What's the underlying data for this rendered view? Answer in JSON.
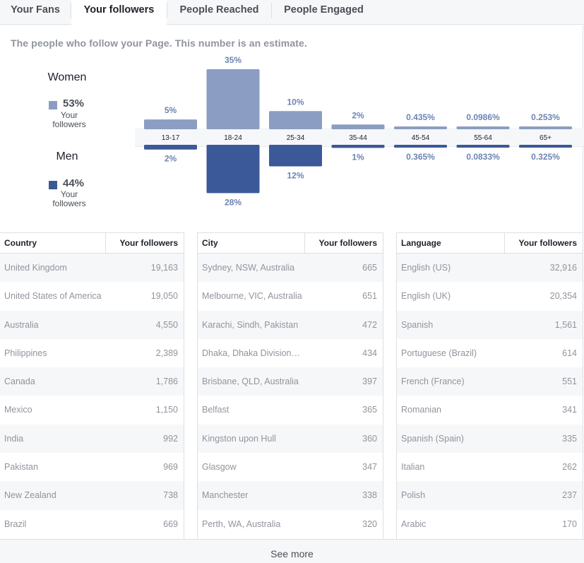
{
  "tabs": [
    "Your Fans",
    "Your followers",
    "People Reached",
    "People Engaged"
  ],
  "active_tab": "Your followers",
  "description": "The people who follow your Page. This number is an estimate.",
  "women": {
    "label": "Women",
    "percent": "53%",
    "sub": "Your followers",
    "color": "#8b9dc3"
  },
  "men": {
    "label": "Men",
    "percent": "44%",
    "sub": "Your followers",
    "color": "#3b5998"
  },
  "chart_data": {
    "type": "bar",
    "categories": [
      "13-17",
      "18-24",
      "25-34",
      "35-44",
      "45-54",
      "55-64",
      "65+"
    ],
    "series": [
      {
        "name": "Women",
        "values": [
          5,
          35,
          10,
          2,
          0.435,
          0.0986,
          0.253
        ],
        "labels": [
          "5%",
          "35%",
          "10%",
          "2%",
          "0.435%",
          "0.0986%",
          "0.253%"
        ]
      },
      {
        "name": "Men",
        "values": [
          2,
          28,
          12,
          1,
          0.365,
          0.0833,
          0.325
        ],
        "labels": [
          "2%",
          "28%",
          "12%",
          "1%",
          "0.365%",
          "0.0833%",
          "0.325%"
        ]
      }
    ]
  },
  "tables": [
    {
      "col1": "Country",
      "col2": "Your followers",
      "rows": [
        [
          "United Kingdom",
          "19,163"
        ],
        [
          "United States of America",
          "19,050"
        ],
        [
          "Australia",
          "4,550"
        ],
        [
          "Philippines",
          "2,389"
        ],
        [
          "Canada",
          "1,786"
        ],
        [
          "Mexico",
          "1,150"
        ],
        [
          "India",
          "992"
        ],
        [
          "Pakistan",
          "969"
        ],
        [
          "New Zealand",
          "738"
        ],
        [
          "Brazil",
          "669"
        ]
      ]
    },
    {
      "col1": "City",
      "col2": "Your followers",
      "rows": [
        [
          "Sydney, NSW, Australia",
          "665"
        ],
        [
          "Melbourne, VIC, Australia",
          "651"
        ],
        [
          "Karachi, Sindh, Pakistan",
          "472"
        ],
        [
          "Dhaka, Dhaka Division…",
          "434"
        ],
        [
          "Brisbane, QLD, Australia",
          "397"
        ],
        [
          "Belfast",
          "365"
        ],
        [
          "Kingston upon Hull",
          "360"
        ],
        [
          "Glasgow",
          "347"
        ],
        [
          "Manchester",
          "338"
        ],
        [
          "Perth, WA, Australia",
          "320"
        ]
      ]
    },
    {
      "col1": "Language",
      "col2": "Your followers",
      "rows": [
        [
          "English (US)",
          "32,916"
        ],
        [
          "English (UK)",
          "20,354"
        ],
        [
          "Spanish",
          "1,561"
        ],
        [
          "Portuguese (Brazil)",
          "614"
        ],
        [
          "French (France)",
          "551"
        ],
        [
          "Romanian",
          "341"
        ],
        [
          "Spanish (Spain)",
          "335"
        ],
        [
          "Italian",
          "262"
        ],
        [
          "Polish",
          "237"
        ],
        [
          "Arabic",
          "170"
        ]
      ]
    }
  ],
  "see_more": "See more"
}
